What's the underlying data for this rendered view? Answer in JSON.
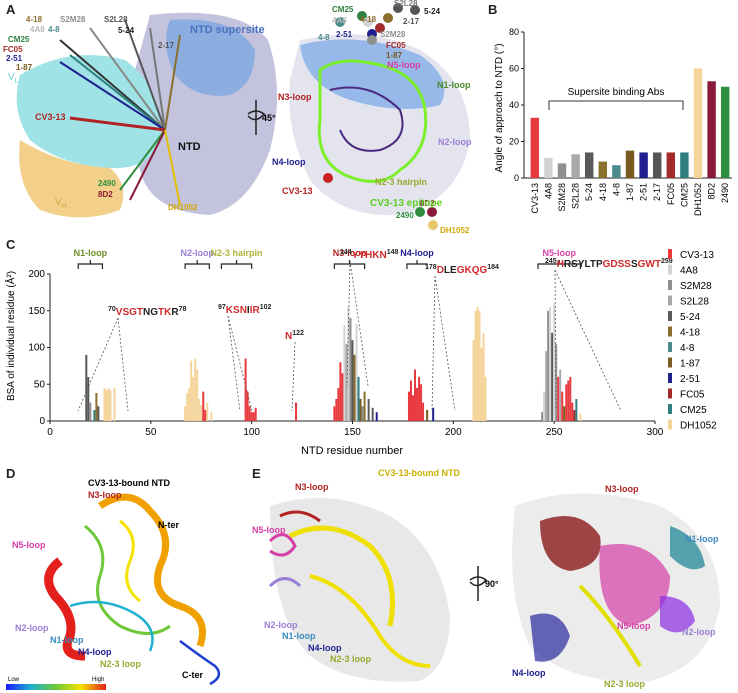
{
  "panel_letters": {
    "a": "A",
    "b": "B",
    "c": "C",
    "d": "D",
    "e": "E"
  },
  "panel_a": {
    "ntd_supersite": "NTD supersite",
    "ntd": "NTD",
    "vl": "V",
    "vl_sub": "L",
    "vh": "V",
    "vh_sub": "H",
    "rotation": "45°",
    "cv313": "CV3-13",
    "epitope": "CV3-13 epitope",
    "loops": [
      "N1-loop",
      "N2-loop",
      "N3-loop",
      "N4-loop",
      "N5-loop",
      "N2-3 hairpin"
    ],
    "left_ab_labels": [
      "4-18",
      "S2M28",
      "S2L28",
      "4A8",
      "4-8",
      "5-24",
      "CM25",
      "2-17",
      "FC05",
      "2-51",
      "1-87",
      "2490",
      "8D2",
      "DH1052"
    ],
    "right_ab_labels": [
      "CM25",
      "4A8",
      "S2L28",
      "4-18",
      "5-24",
      "2-17",
      "4-8",
      "2-51",
      "S2M28",
      "FC05",
      "1-87",
      "2490",
      "8D2",
      "DH1052"
    ]
  },
  "chart_b": {
    "type": "bar",
    "ylabel": "Angle of approach to NTD (°)",
    "ylim": [
      0,
      80
    ],
    "yticks": [
      0,
      20,
      40,
      60,
      80
    ],
    "categories": [
      "CV3-13",
      "4A8",
      "S2M28",
      "S2L28",
      "5-24",
      "4-18",
      "4-8",
      "1-87",
      "2-51",
      "2-17",
      "FC05",
      "CM25",
      "DH1052",
      "8D2",
      "2490"
    ],
    "values": [
      33,
      11,
      8,
      13,
      14,
      9,
      7,
      15,
      14,
      14,
      14,
      14,
      60,
      53,
      50
    ],
    "colors": [
      "#e8393f",
      "#d3d3d3",
      "#8f8f8f",
      "#a9a9a9",
      "#595959",
      "#8b6f2d",
      "#4d8a8a",
      "#7a5a1e",
      "#1f1f8f",
      "#555555",
      "#a32b2b",
      "#2f7f7f",
      "#f5d49a",
      "#8b1a3a",
      "#2f8f3f"
    ],
    "annotation": "Supersite binding Abs"
  },
  "chart_c": {
    "type": "bar",
    "xlabel": "NTD residue number",
    "ylabel": "BSA of individual residue (Å²)",
    "xlim": [
      0,
      300
    ],
    "ylim": [
      0,
      200
    ],
    "xticks": [
      0,
      50,
      100,
      150,
      200,
      250,
      300
    ],
    "yticks": [
      0,
      50,
      100,
      150,
      200
    ],
    "loops": [
      {
        "name": "N1-loop",
        "color": "#6b8e23",
        "start": 14,
        "end": 26
      },
      {
        "name": "N2-loop",
        "color": "#9b7fd4",
        "start": 67,
        "end": 79
      },
      {
        "name": "N2-3 hairpin",
        "color": "#b0b53a",
        "start": 85,
        "end": 100
      },
      {
        "name": "N3-loop",
        "color": "#b22222",
        "start": 141,
        "end": 156
      },
      {
        "name": "N4-loop",
        "color": "#1f1f8f",
        "start": 177,
        "end": 187
      },
      {
        "name": "N5-loop",
        "color": "#d63fa8",
        "start": 242,
        "end": 263
      }
    ],
    "sequences": [
      {
        "start": "70",
        "end": "78",
        "segments": [
          [
            "VSGT",
            "#d12b2b"
          ],
          [
            "NG",
            "#222222"
          ],
          [
            "TK",
            "#d12b2b"
          ],
          [
            "R",
            "#222222"
          ]
        ]
      },
      {
        "start": "97",
        "end": "102",
        "segments": [
          [
            "KSN",
            "#d12b2b"
          ],
          [
            "I",
            "#222222"
          ],
          [
            "IR",
            "#d12b2b"
          ]
        ]
      },
      {
        "start": "",
        "end": "122",
        "segments": [
          [
            "N",
            "#d12b2b"
          ]
        ]
      },
      {
        "start": "144",
        "end": "148",
        "segments": [
          [
            "YYHKN",
            "#d12b2b"
          ]
        ]
      },
      {
        "start": "178",
        "end": "184",
        "segments": [
          [
            "D",
            "#d12b2b"
          ],
          [
            "LE",
            "#222222"
          ],
          [
            "GKQG",
            "#d12b2b"
          ]
        ]
      },
      {
        "start": "245",
        "end": "259",
        "segments": [
          [
            "H",
            "#d12b2b"
          ],
          [
            "RSYLTP",
            "#222222"
          ],
          [
            "GDSS",
            "#d12b2b"
          ],
          [
            "S",
            "#222222"
          ],
          [
            "GWT",
            "#d12b2b"
          ]
        ]
      }
    ],
    "legend": [
      {
        "name": "CV3-13",
        "color": "#e8393f"
      },
      {
        "name": "4A8",
        "color": "#d3d3d3"
      },
      {
        "name": "S2M28",
        "color": "#8f8f8f"
      },
      {
        "name": "S2L28",
        "color": "#a9a9a9"
      },
      {
        "name": "5-24",
        "color": "#595959"
      },
      {
        "name": "4-18",
        "color": "#8b6f2d"
      },
      {
        "name": "4-8",
        "color": "#4d8a8a"
      },
      {
        "name": "1-87",
        "color": "#7a5a1e"
      },
      {
        "name": "2-51",
        "color": "#1f1f8f"
      },
      {
        "name": "FC05",
        "color": "#a32b2b"
      },
      {
        "name": "CM25",
        "color": "#2f7f7f"
      },
      {
        "name": "DH1052",
        "color": "#f5d49a"
      }
    ],
    "bars": [
      {
        "x": 18,
        "y": 90,
        "c": "#595959"
      },
      {
        "x": 19,
        "y": 60,
        "c": "#595959"
      },
      {
        "x": 20,
        "y": 25,
        "c": "#8f8f8f"
      },
      {
        "x": 22,
        "y": 15,
        "c": "#2f7f7f"
      },
      {
        "x": 23,
        "y": 38,
        "c": "#8b6f2d"
      },
      {
        "x": 24,
        "y": 20,
        "c": "#595959"
      },
      {
        "x": 27,
        "y": 45,
        "c": "#f5d49a"
      },
      {
        "x": 28,
        "y": 42,
        "c": "#f5d49a"
      },
      {
        "x": 29,
        "y": 45,
        "c": "#f5d49a"
      },
      {
        "x": 30,
        "y": 42,
        "c": "#f5d49a"
      },
      {
        "x": 32,
        "y": 45,
        "c": "#f5d49a"
      },
      {
        "x": 67,
        "y": 20,
        "c": "#f5d49a"
      },
      {
        "x": 68,
        "y": 38,
        "c": "#f5d49a"
      },
      {
        "x": 69,
        "y": 45,
        "c": "#f5d49a"
      },
      {
        "x": 70,
        "y": 82,
        "c": "#f5d49a"
      },
      {
        "x": 71,
        "y": 60,
        "c": "#f5d49a"
      },
      {
        "x": 72,
        "y": 85,
        "c": "#f5d49a"
      },
      {
        "x": 73,
        "y": 70,
        "c": "#f5d49a"
      },
      {
        "x": 74,
        "y": 30,
        "c": "#f5d49a"
      },
      {
        "x": 75,
        "y": 22,
        "c": "#f5d49a"
      },
      {
        "x": 76,
        "y": 40,
        "c": "#e8393f"
      },
      {
        "x": 77,
        "y": 15,
        "c": "#e8393f"
      },
      {
        "x": 78,
        "y": 25,
        "c": "#f5d49a"
      },
      {
        "x": 80,
        "y": 12,
        "c": "#f5d49a"
      },
      {
        "x": 97,
        "y": 85,
        "c": "#e8393f"
      },
      {
        "x": 98,
        "y": 40,
        "c": "#e8393f"
      },
      {
        "x": 99,
        "y": 20,
        "c": "#e8393f"
      },
      {
        "x": 100,
        "y": 12,
        "c": "#e8393f"
      },
      {
        "x": 101,
        "y": 12,
        "c": "#e8393f"
      },
      {
        "x": 102,
        "y": 18,
        "c": "#e8393f"
      },
      {
        "x": 122,
        "y": 25,
        "c": "#e8393f"
      },
      {
        "x": 141,
        "y": 20,
        "c": "#e8393f"
      },
      {
        "x": 142,
        "y": 30,
        "c": "#e8393f"
      },
      {
        "x": 143,
        "y": 45,
        "c": "#e8393f"
      },
      {
        "x": 144,
        "y": 80,
        "c": "#e8393f"
      },
      {
        "x": 145,
        "y": 65,
        "c": "#e8393f"
      },
      {
        "x": 146,
        "y": 130,
        "c": "#d3d3d3"
      },
      {
        "x": 147,
        "y": 105,
        "c": "#a9a9a9"
      },
      {
        "x": 148,
        "y": 155,
        "c": "#d3d3d3"
      },
      {
        "x": 149,
        "y": 140,
        "c": "#8f8f8f"
      },
      {
        "x": 150,
        "y": 110,
        "c": "#595959"
      },
      {
        "x": 151,
        "y": 90,
        "c": "#8b6f2d"
      },
      {
        "x": 152,
        "y": 132,
        "c": "#d3d3d3"
      },
      {
        "x": 153,
        "y": 60,
        "c": "#2f7f7f"
      },
      {
        "x": 154,
        "y": 30,
        "c": "#7a5a1e"
      },
      {
        "x": 155,
        "y": 20,
        "c": "#8f8f8f"
      },
      {
        "x": 156,
        "y": 40,
        "c": "#8b6f2d"
      },
      {
        "x": 158,
        "y": 30,
        "c": "#595959"
      },
      {
        "x": 160,
        "y": 18,
        "c": "#595959"
      },
      {
        "x": 162,
        "y": 12,
        "c": "#1f1f8f"
      },
      {
        "x": 178,
        "y": 40,
        "c": "#e8393f"
      },
      {
        "x": 179,
        "y": 55,
        "c": "#e8393f"
      },
      {
        "x": 180,
        "y": 35,
        "c": "#e8393f"
      },
      {
        "x": 181,
        "y": 70,
        "c": "#e8393f"
      },
      {
        "x": 182,
        "y": 45,
        "c": "#e8393f"
      },
      {
        "x": 183,
        "y": 60,
        "c": "#e8393f"
      },
      {
        "x": 184,
        "y": 50,
        "c": "#e8393f"
      },
      {
        "x": 185,
        "y": 25,
        "c": "#e8393f"
      },
      {
        "x": 187,
        "y": 15,
        "c": "#7a5a1e"
      },
      {
        "x": 190,
        "y": 18,
        "c": "#1f1f8f"
      },
      {
        "x": 210,
        "y": 110,
        "c": "#f5d49a"
      },
      {
        "x": 211,
        "y": 150,
        "c": "#f5d49a"
      },
      {
        "x": 212,
        "y": 155,
        "c": "#f5d49a"
      },
      {
        "x": 213,
        "y": 150,
        "c": "#f5d49a"
      },
      {
        "x": 214,
        "y": 100,
        "c": "#f5d49a"
      },
      {
        "x": 215,
        "y": 120,
        "c": "#f5d49a"
      },
      {
        "x": 216,
        "y": 60,
        "c": "#f5d49a"
      },
      {
        "x": 244,
        "y": 12,
        "c": "#8f8f8f"
      },
      {
        "x": 245,
        "y": 40,
        "c": "#d3d3d3"
      },
      {
        "x": 246,
        "y": 95,
        "c": "#a9a9a9"
      },
      {
        "x": 247,
        "y": 150,
        "c": "#8f8f8f"
      },
      {
        "x": 248,
        "y": 155,
        "c": "#d3d3d3"
      },
      {
        "x": 249,
        "y": 120,
        "c": "#595959"
      },
      {
        "x": 250,
        "y": 160,
        "c": "#d3d3d3"
      },
      {
        "x": 251,
        "y": 105,
        "c": "#8f8f8f"
      },
      {
        "x": 252,
        "y": 60,
        "c": "#e8393f"
      },
      {
        "x": 253,
        "y": 70,
        "c": "#a9a9a9"
      },
      {
        "x": 254,
        "y": 40,
        "c": "#e8393f"
      },
      {
        "x": 255,
        "y": 20,
        "c": "#7a5a1e"
      },
      {
        "x": 256,
        "y": 50,
        "c": "#e8393f"
      },
      {
        "x": 257,
        "y": 55,
        "c": "#e8393f"
      },
      {
        "x": 258,
        "y": 60,
        "c": "#e8393f"
      },
      {
        "x": 259,
        "y": 25,
        "c": "#e8393f"
      },
      {
        "x": 260,
        "y": 15,
        "c": "#a32b2b"
      },
      {
        "x": 261,
        "y": 30,
        "c": "#2f7f7f"
      },
      {
        "x": 263,
        "y": 10,
        "c": "#f5d49a"
      }
    ]
  },
  "panel_d": {
    "title": "CV3-13-bound NTD",
    "labels": [
      "N3-loop",
      "N-ter",
      "N5-loop",
      "N2-loop",
      "N1-loop",
      "N4-loop",
      "N2-3 loop",
      "C-ter"
    ],
    "scale_low": "Low",
    "scale_high": "High"
  },
  "panel_e": {
    "title": "CV3-13-bound NTD",
    "left_labels": [
      "N3-loop",
      "N5-loop",
      "N2-loop",
      "N1-loop",
      "N4-loop",
      "N2-3 loop"
    ],
    "right_labels": [
      "N3-loop",
      "N1-loop",
      "N5-loop",
      "N2-loop",
      "N4-loop",
      "N2-3 loop"
    ],
    "rotation": "90°"
  }
}
